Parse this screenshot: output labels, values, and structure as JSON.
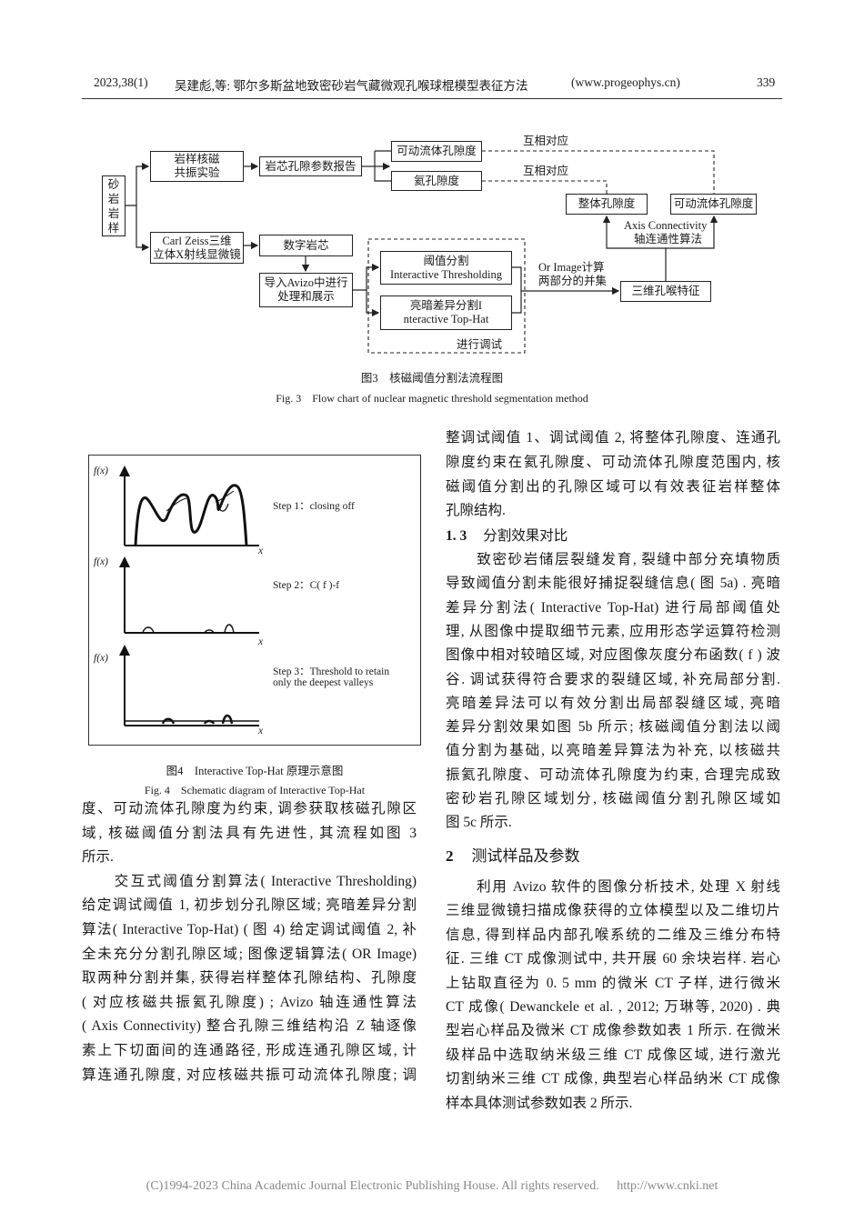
{
  "header": {
    "issue": "2023,38(1)",
    "title": "吴建彪,等: 鄂尔多斯盆地致密砂岩气藏微观孔喉球棍模型表征方法",
    "website": "(www.progeophys.cn)",
    "page_number": "339"
  },
  "figure3": {
    "nodes": {
      "sample": "砂岩岩样",
      "nmr": "岩样核磁共振实验",
      "report": "岩芯孔隙参数报告",
      "movable_top": "可动流体孔隙度",
      "helium": "氦孔隙度",
      "correspond1": "互相对应",
      "correspond2": "互相对应",
      "total_porosity": "整体孔隙度",
      "movable_right": "可动流体孔隙度",
      "axis_en": "Axis Connectivity",
      "axis_cn": "轴连通性算法",
      "zeiss_1": "Carl Zeiss三维",
      "zeiss_2": "立体X射线显微镜",
      "digital_core": "数字岩芯",
      "avizo_1": "导入Avizo中进行",
      "avizo_2": "处理和展示",
      "thresh_cn": "阈值分割",
      "thresh_en": "Interactive Thresholding",
      "tophat_cn": "亮暗差异分割I",
      "tophat_en": "nteractive Top-Hat",
      "debug": "进行调试",
      "or_1": "Or Image计算",
      "or_2": "两部分的并集",
      "pore_throat": "三维孔喉特征"
    },
    "caption_cn": "图3　核磁阈值分割法流程图",
    "caption_en": "Fig. 3　Flow chart of nuclear magnetic threshold segmentation method"
  },
  "figure4": {
    "panels": [
      {
        "ylabel": "f(x)",
        "xlabel": "x",
        "step": [
          "Step 1：closing off"
        ]
      },
      {
        "ylabel": "f(x)",
        "xlabel": "x",
        "step": [
          "Step 2：C( f )-f"
        ]
      },
      {
        "ylabel": "f(x)",
        "xlabel": "x",
        "step": [
          "Step 3：Threshold to retain",
          "only the deepest valleys"
        ]
      }
    ],
    "caption_cn": "图4　Interactive Top-Hat 原理示意图",
    "caption_en": "Fig. 4　Schematic diagram of Interactive Top-Hat"
  },
  "left_column": {
    "lines": [
      "度、可动流体孔隙度为约束, 调参获取核磁孔隙区",
      "域, 核磁阈值分割法具有先进性, 其流程如图 3",
      "所示.",
      "　　交互式阈值分割算法( Interactive Thresholding)",
      "给定调试阈值 1, 初步划分孔隙区域; 亮暗差异分割",
      "算法( Interactive Top-Hat) ( 图 4) 给定调试阈值 2, 补",
      "全未充分分割孔隙区域; 图像逻辑算法( OR Image)",
      "取两种分割并集, 获得岩样整体孔隙结构、孔隙度",
      "( 对应核磁共振氦孔隙度) ; Avizo 轴连通性算法",
      "( Axis Connectivity) 整合孔隙三维结构沿 Z 轴逐像",
      "素上下切面间的连通路径, 形成连通孔隙区域, 计",
      "算连通孔隙度, 对应核磁共振可动流体孔隙度; 调"
    ]
  },
  "right_column": {
    "lines_top": [
      "整调试阈值 1、调试阈值 2, 将整体孔隙度、连通孔",
      "隙度约束在氦孔隙度、可动流体孔隙度范围内, 核",
      "磁阈值分割出的孔隙区域可以有效表征岩样整体",
      "孔隙结构."
    ],
    "section_1_3": {
      "number": "1. 3",
      "title": "分割效果对比"
    },
    "lines_1_3": [
      "　　致密砂岩储层裂缝发育, 裂缝中部分充填物质",
      "导致阈值分割未能很好捕捉裂缝信息( 图 5a) . 亮暗",
      "差异分割法( Interactive Top-Hat) 进行局部阈值处",
      "理, 从图像中提取细节元素, 应用形态学运算符检测",
      "图像中相对较暗区域, 对应图像灰度分布函数( f ) 波",
      "谷. 调试获得符合要求的裂缝区域, 补充局部分割.",
      "亮暗差异法可以有效分割出局部裂缝区域, 亮暗",
      "差异分割效果如图 5b 所示; 核磁阈值分割法以阈",
      "值分割为基础, 以亮暗差异算法为补充, 以核磁共",
      "振氦孔隙度、可动流体孔隙度为约束, 合理完成致",
      "密砂岩孔隙区域划分, 核磁阈值分割孔隙区域如",
      "图 5c 所示."
    ],
    "section_2": {
      "number": "2",
      "title": "测试样品及参数"
    },
    "lines_2": [
      "　　利用 Avizo 软件的图像分析技术, 处理 X 射线",
      "三维显微镜扫描成像获得的立体模型以及二维切片",
      "信息, 得到样品内部孔喉系统的二维及三维分布特",
      "征. 三维 CT 成像测试中, 共开展 60 余块岩样. 岩心",
      "上钻取直径为 0. 5 mm 的微米 CT 子样, 进行微米",
      "CT 成像( Dewanckele et al. , 2012; 万琳等, 2020) . 典",
      "型岩心样品及微米 CT 成像参数如表 1 所示. 在微米",
      "级样品中选取纳米级三维 CT 成像区域, 进行激光",
      "切割纳米三维 CT 成像, 典型岩心样品纳米 CT 成像",
      "样本具体测试参数如表 2 所示."
    ]
  },
  "footer": {
    "copyright": "(C)1994-2023 China Academic Journal Electronic Publishing House. All rights reserved.",
    "url": "http://www.cnki.net"
  }
}
